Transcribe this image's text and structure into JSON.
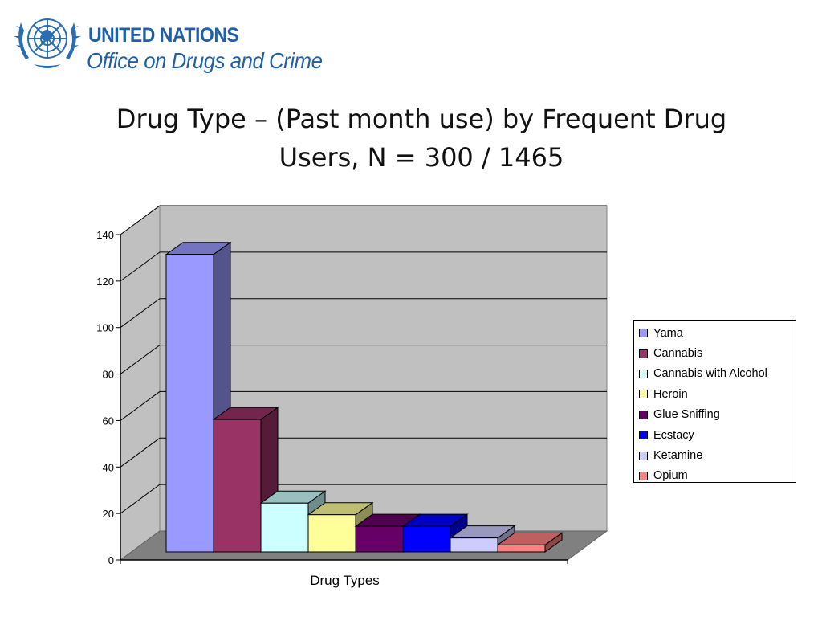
{
  "header": {
    "org_line1": "UNITED NATIONS",
    "org_line2": "Office on Drugs and Crime",
    "emblem_icon": "un-emblem-icon"
  },
  "slide": {
    "title_line1": "Drug Type – (Past month use) by Frequent Drug",
    "title_line2": "Users, N = 300 / 1465"
  },
  "chart_data": {
    "type": "bar",
    "style": "3d-clustered-column",
    "title": "",
    "xlabel": "Drug Types",
    "ylabel": "",
    "ylim": [
      0,
      140
    ],
    "yticks": [
      "0",
      "20",
      "40",
      "60",
      "80",
      "100",
      "120",
      "140"
    ],
    "grid": true,
    "legend_position": "right",
    "series": [
      {
        "name": "Yama",
        "value": 128,
        "color": "#9999ff"
      },
      {
        "name": "Cannabis",
        "value": 57,
        "color": "#993366"
      },
      {
        "name": "Cannabis with Alcohol",
        "value": 21,
        "color": "#ccffff"
      },
      {
        "name": "Heroin",
        "value": 16,
        "color": "#ffff99"
      },
      {
        "name": "Glue Sniffing",
        "value": 11,
        "color": "#660066"
      },
      {
        "name": "Ecstacy",
        "value": 11,
        "color": "#0000ff"
      },
      {
        "name": "Ketamine",
        "value": 6,
        "color": "#ccccff"
      },
      {
        "name": "Opium",
        "value": 3,
        "color": "#ff8080"
      }
    ],
    "wall_color": "#c0c0c0",
    "floor_color": "#808080"
  }
}
